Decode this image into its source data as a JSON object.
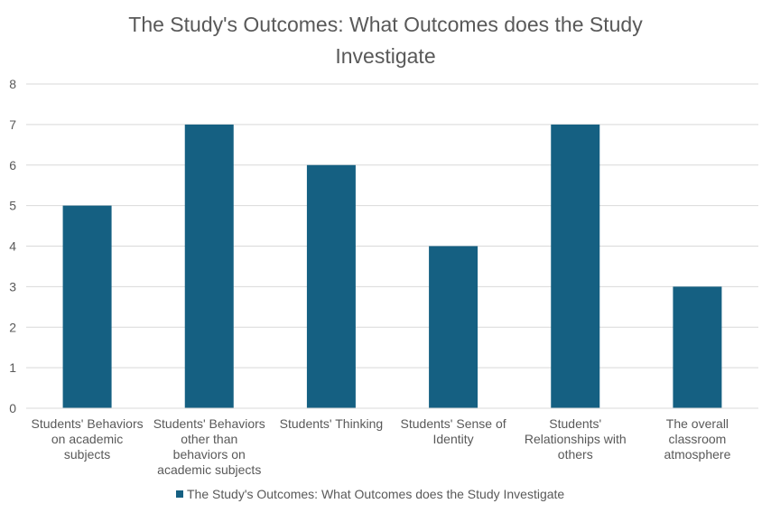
{
  "chart_data": {
    "type": "bar",
    "title_lines": [
      "The Study's Outcomes: What Outcomes does the Study",
      "Investigate"
    ],
    "categories": [
      [
        "Students' Behaviors",
        "on academic",
        "subjects"
      ],
      [
        "Students' Behaviors",
        "other than",
        "behaviors on",
        "academic subjects"
      ],
      [
        "Students' Thinking"
      ],
      [
        "Students' Sense of",
        "Identity"
      ],
      [
        "Students'",
        "Relationships with",
        "others"
      ],
      [
        "The overall",
        "classroom",
        "atmosphere"
      ]
    ],
    "series": [
      {
        "name": "The Study's Outcomes: What Outcomes does the Study Investigate",
        "values": [
          5,
          7,
          6,
          4,
          7,
          3
        ],
        "color": "#156082"
      }
    ],
    "yticks": [
      "0",
      "1",
      "2",
      "3",
      "4",
      "5",
      "6",
      "7",
      "8"
    ],
    "ylim": [
      0,
      8
    ],
    "grid": true,
    "legend_position": "bottom",
    "gridline_color": "#d9d9d9",
    "text_color": "#595959"
  }
}
